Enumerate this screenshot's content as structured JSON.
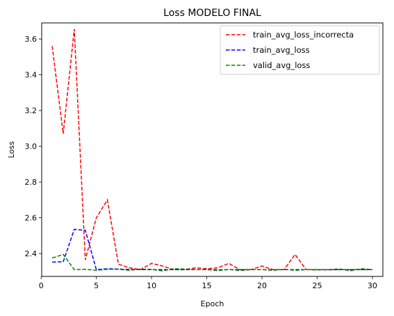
{
  "chart_data": {
    "type": "line",
    "title": "Loss  MODELO FINAL",
    "xlabel": "Epoch",
    "ylabel": "Loss",
    "xlim": [
      0.05,
      30.95
    ],
    "ylim": [
      2.272,
      3.69
    ],
    "xticks": [
      0,
      5,
      10,
      15,
      20,
      25,
      30
    ],
    "yticks": [
      2.4,
      2.6,
      2.8,
      3.0,
      3.2,
      3.4,
      3.6
    ],
    "ytick_labels": [
      "2.4",
      "2.6",
      "2.8",
      "3.0",
      "3.2",
      "3.4",
      "3.6"
    ],
    "legend_position": "top-right",
    "grid": false,
    "x": [
      1,
      2,
      3,
      4,
      5,
      6,
      7,
      8,
      9,
      10,
      11,
      12,
      13,
      14,
      15,
      16,
      17,
      18,
      19,
      20,
      21,
      22,
      23,
      24,
      25,
      26,
      27,
      28,
      29,
      30
    ],
    "series": [
      {
        "name": "train_avg_loss_incorrecta",
        "color": "#ff0000",
        "values": [
          3.56,
          3.07,
          3.655,
          2.365,
          2.6,
          2.7,
          2.34,
          2.32,
          2.31,
          2.345,
          2.33,
          2.31,
          2.31,
          2.32,
          2.315,
          2.32,
          2.345,
          2.31,
          2.31,
          2.33,
          2.31,
          2.31,
          2.395,
          2.31,
          2.31,
          2.31,
          2.31,
          2.31,
          2.31,
          2.31
        ]
      },
      {
        "name": "train_avg_loss",
        "color": "#0000ff",
        "values": [
          2.352,
          2.354,
          2.535,
          2.53,
          2.31,
          2.315,
          2.313,
          2.311,
          2.31,
          2.31,
          2.31,
          2.31,
          2.31,
          2.31,
          2.31,
          2.309,
          2.31,
          2.31,
          2.31,
          2.31,
          2.309,
          2.31,
          2.31,
          2.31,
          2.31,
          2.309,
          2.31,
          2.31,
          2.31,
          2.31
        ]
      },
      {
        "name": "valid_avg_loss",
        "color": "#008000",
        "values": [
          2.375,
          2.395,
          2.31,
          2.312,
          2.306,
          2.312,
          2.312,
          2.306,
          2.313,
          2.311,
          2.303,
          2.315,
          2.313,
          2.31,
          2.31,
          2.305,
          2.311,
          2.305,
          2.31,
          2.31,
          2.306,
          2.312,
          2.306,
          2.31,
          2.308,
          2.31,
          2.314,
          2.304,
          2.315,
          2.31
        ]
      }
    ]
  }
}
